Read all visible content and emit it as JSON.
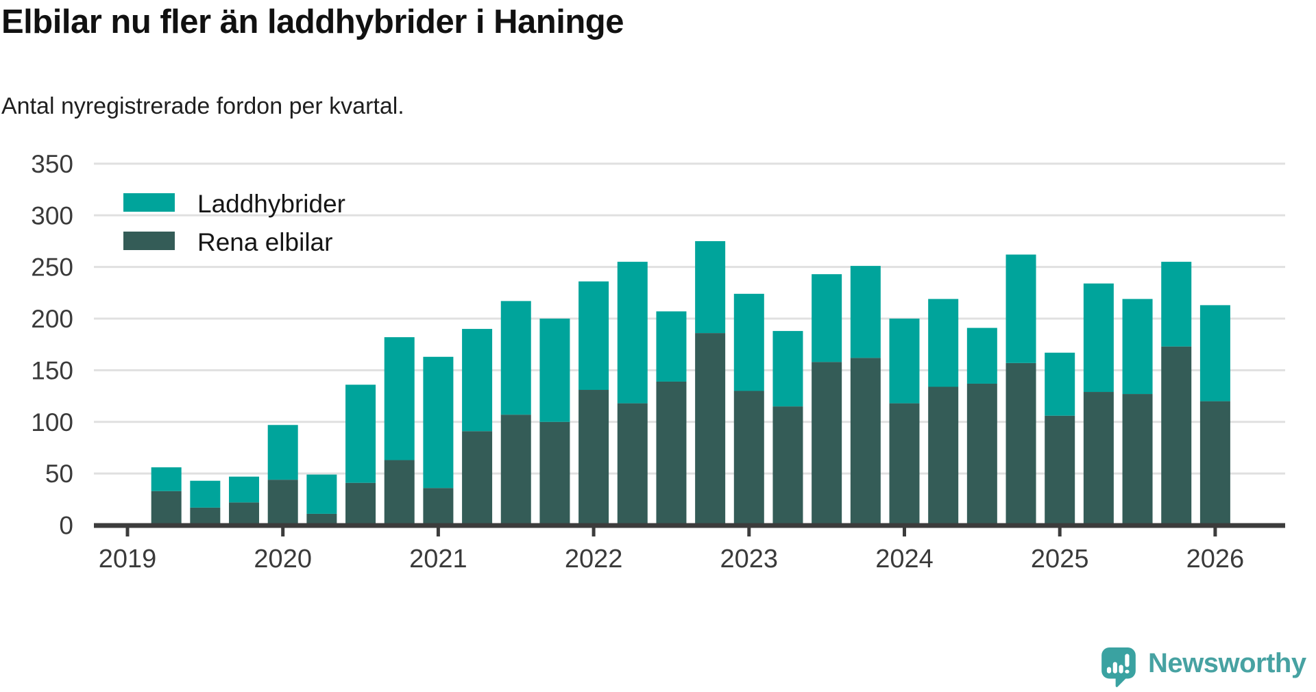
{
  "header": {
    "title": "Elbilar nu fler än laddhybrider i Haninge",
    "subtitle": "Antal nyregistrerade fordon per kvartal."
  },
  "legend": {
    "items": [
      {
        "label": "Laddhybrider",
        "color": "#00a49b"
      },
      {
        "label": "Rena elbilar",
        "color": "#345c57"
      }
    ]
  },
  "footer": {
    "brand": "Newsworthy",
    "brand_color": "#47a2a2"
  },
  "colors": {
    "laddhybrider": "#00a49b",
    "rena_elbilar": "#345c57",
    "gridline": "#e0e0e0",
    "axis": "#3c3c3c",
    "tick_label": "#3a3a3a"
  },
  "chart_data": {
    "type": "bar",
    "stacked": true,
    "title": "Elbilar nu fler än laddhybrider i Haninge",
    "subtitle": "Antal nyregistrerade fordon per kvartal.",
    "quarters": [
      "2019-Q2",
      "2019-Q3",
      "2019-Q4",
      "2020-Q1",
      "2020-Q2",
      "2020-Q3",
      "2020-Q4",
      "2021-Q1",
      "2021-Q2",
      "2021-Q3",
      "2021-Q4",
      "2022-Q1",
      "2022-Q2",
      "2022-Q3",
      "2022-Q4",
      "2023-Q1",
      "2023-Q2",
      "2023-Q3",
      "2023-Q4",
      "2024-Q1",
      "2024-Q2",
      "2024-Q3",
      "2024-Q4",
      "2025-Q1",
      "2025-Q2",
      "2025-Q3",
      "2025-Q4",
      "2026-Q1"
    ],
    "first_bar_quarter_index": 1,
    "series": [
      {
        "name": "Rena elbilar",
        "color": "#345c57",
        "values": [
          33,
          17,
          22,
          44,
          11,
          41,
          63,
          36,
          91,
          107,
          100,
          131,
          118,
          139,
          186,
          130,
          115,
          158,
          162,
          118,
          134,
          137,
          157,
          106,
          129,
          127,
          173,
          120
        ]
      },
      {
        "name": "Laddhybrider",
        "color": "#00a49b",
        "values": [
          23,
          26,
          25,
          53,
          38,
          95,
          119,
          127,
          99,
          110,
          100,
          105,
          137,
          68,
          89,
          94,
          73,
          85,
          89,
          82,
          85,
          54,
          105,
          61,
          105,
          92,
          82,
          93
        ]
      }
    ],
    "x_year_ticks": [
      "2019",
      "2020",
      "2021",
      "2022",
      "2023",
      "2024",
      "2025",
      "2026"
    ],
    "y_ticks": [
      0,
      50,
      100,
      150,
      200,
      250,
      300,
      350
    ],
    "ylim": [
      0,
      350
    ],
    "grid": "horizontal",
    "legend_position": "inside-top-left",
    "legend_order": [
      "Laddhybrider",
      "Rena elbilar"
    ]
  }
}
